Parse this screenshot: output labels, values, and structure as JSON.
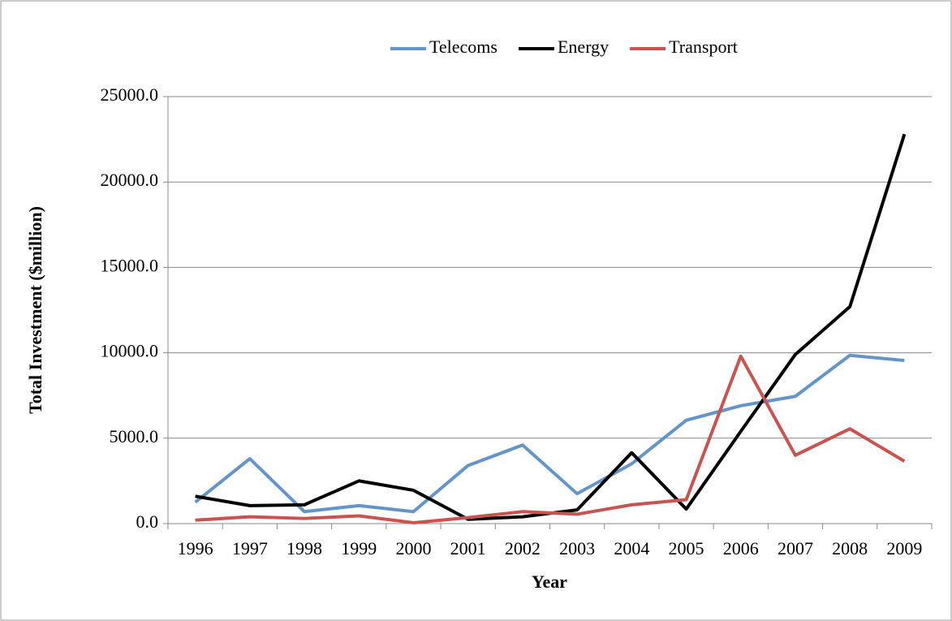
{
  "chart_data": {
    "type": "line",
    "categories": [
      "1996",
      "1997",
      "1998",
      "1999",
      "2000",
      "2001",
      "2002",
      "2003",
      "2004",
      "2005",
      "2006",
      "2007",
      "2008",
      "2009"
    ],
    "series": [
      {
        "name": "Telecoms",
        "color": "#6495c9",
        "values": [
          1250,
          3800,
          700,
          1050,
          700,
          3400,
          4600,
          1750,
          3500,
          6050,
          6900,
          7450,
          9850,
          9550
        ]
      },
      {
        "name": "Energy",
        "color": "#000000",
        "values": [
          1600,
          1050,
          1100,
          2500,
          1950,
          250,
          400,
          800,
          4150,
          850,
          5400,
          9900,
          12700,
          22800
        ]
      },
      {
        "name": "Transport",
        "color": "#c9534f",
        "values": [
          200,
          400,
          300,
          450,
          50,
          350,
          700,
          550,
          1100,
          1400,
          9800,
          4000,
          5550,
          3650
        ]
      }
    ],
    "x_label": "Year",
    "y_label": "Total Investment ($million)",
    "ylim": [
      0,
      25000
    ],
    "yticks": [
      {
        "value": 0,
        "label": "0.0"
      },
      {
        "value": 5000,
        "label": "5000.0"
      },
      {
        "value": 10000,
        "label": "10000.0"
      },
      {
        "value": 15000,
        "label": "15000.0"
      },
      {
        "value": 20000,
        "label": "20000.0"
      },
      {
        "value": 25000,
        "label": "25000.0"
      }
    ],
    "grid": true,
    "legend": "top"
  }
}
